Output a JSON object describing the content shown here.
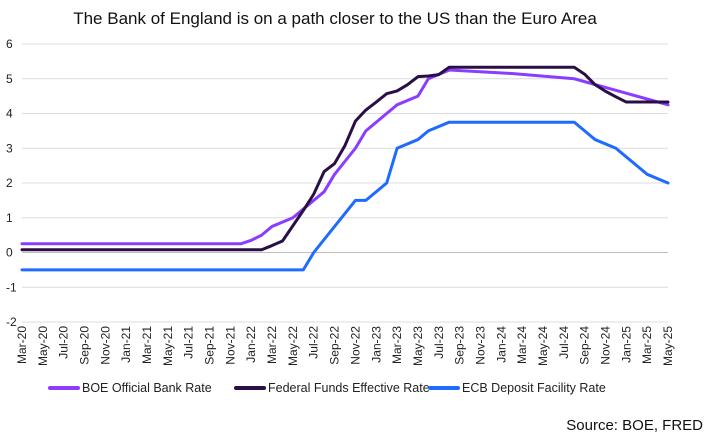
{
  "chart_data": {
    "type": "line",
    "title": "The Bank of England is on a path closer to the US than the Euro Area",
    "xlabel": "",
    "ylabel": "",
    "ylim": [
      -2,
      6
    ],
    "yticks": [
      "6",
      "5",
      "4",
      "3",
      "2",
      "1",
      "0",
      "-1",
      "-2"
    ],
    "x_tick_labels": [
      "Mar-20",
      "May-20",
      "Jul-20",
      "Sep-20",
      "Nov-20",
      "Jan-21",
      "Mar-21",
      "May-21",
      "Jul-21",
      "Sep-21",
      "Nov-21",
      "Jan-22",
      "Mar-22",
      "May-22",
      "Jul-22",
      "Sep-22",
      "Nov-22",
      "Jan-23",
      "Mar-23",
      "May-23",
      "Jul-23",
      "Sep-23",
      "Nov-23",
      "Jan-24",
      "Mar-24",
      "May-24",
      "Jul-24",
      "Sep-24",
      "Nov-24",
      "Jan-25",
      "Mar-25",
      "May-25"
    ],
    "grid": "horizontal",
    "legend_position": "bottom",
    "source": "Source: BOE, FRED",
    "series": [
      {
        "name": "BOE Official Bank Rate",
        "color": "#8b3dff",
        "points": [
          [
            "Mar-20",
            0.25
          ],
          [
            "Jul-20",
            0.25
          ],
          [
            "Nov-20",
            0.25
          ],
          [
            "Mar-21",
            0.25
          ],
          [
            "Jul-21",
            0.25
          ],
          [
            "Nov-21",
            0.25
          ],
          [
            "Dec-21",
            0.25
          ],
          [
            "Jan-22",
            0.35
          ],
          [
            "Feb-22",
            0.5
          ],
          [
            "Mar-22",
            0.75
          ],
          [
            "May-22",
            1.0
          ],
          [
            "Jun-22",
            1.25
          ],
          [
            "Aug-22",
            1.75
          ],
          [
            "Sep-22",
            2.25
          ],
          [
            "Nov-22",
            3.0
          ],
          [
            "Dec-22",
            3.5
          ],
          [
            "Feb-23",
            4.0
          ],
          [
            "Mar-23",
            4.25
          ],
          [
            "May-23",
            4.5
          ],
          [
            "Jun-23",
            5.0
          ],
          [
            "Aug-23",
            5.25
          ],
          [
            "Feb-24",
            5.15
          ],
          [
            "Jun-24",
            5.05
          ],
          [
            "Aug-24",
            5.0
          ],
          [
            "Nov-24",
            4.75
          ],
          [
            "Feb-25",
            4.5
          ],
          [
            "May-25",
            4.25
          ]
        ]
      },
      {
        "name": "Federal Funds Effective Rate",
        "color": "#2a0f45",
        "points": [
          [
            "Mar-20",
            0.08
          ],
          [
            "Jul-20",
            0.08
          ],
          [
            "Nov-20",
            0.08
          ],
          [
            "Mar-21",
            0.08
          ],
          [
            "Jul-21",
            0.08
          ],
          [
            "Nov-21",
            0.08
          ],
          [
            "Feb-22",
            0.08
          ],
          [
            "Mar-22",
            0.2
          ],
          [
            "Apr-22",
            0.33
          ],
          [
            "May-22",
            0.77
          ],
          [
            "Jun-22",
            1.21
          ],
          [
            "Jul-22",
            1.68
          ],
          [
            "Aug-22",
            2.33
          ],
          [
            "Sep-22",
            2.56
          ],
          [
            "Oct-22",
            3.08
          ],
          [
            "Nov-22",
            3.78
          ],
          [
            "Dec-22",
            4.1
          ],
          [
            "Jan-23",
            4.33
          ],
          [
            "Feb-23",
            4.57
          ],
          [
            "Mar-23",
            4.65
          ],
          [
            "Apr-23",
            4.83
          ],
          [
            "May-23",
            5.06
          ],
          [
            "Jun-23",
            5.08
          ],
          [
            "Jul-23",
            5.12
          ],
          [
            "Aug-23",
            5.33
          ],
          [
            "Nov-23",
            5.33
          ],
          [
            "Mar-24",
            5.33
          ],
          [
            "Aug-24",
            5.33
          ],
          [
            "Sep-24",
            5.13
          ],
          [
            "Oct-24",
            4.83
          ],
          [
            "Nov-24",
            4.64
          ],
          [
            "Dec-24",
            4.48
          ],
          [
            "Jan-25",
            4.33
          ],
          [
            "May-25",
            4.33
          ]
        ]
      },
      {
        "name": "ECB Deposit Facility Rate",
        "color": "#1f6bff",
        "points": [
          [
            "Mar-20",
            -0.5
          ],
          [
            "Jul-20",
            -0.5
          ],
          [
            "Nov-20",
            -0.5
          ],
          [
            "Mar-21",
            -0.5
          ],
          [
            "Jul-21",
            -0.5
          ],
          [
            "Nov-21",
            -0.5
          ],
          [
            "Mar-22",
            -0.5
          ],
          [
            "Jun-22",
            -0.5
          ],
          [
            "Jul-22",
            0.0
          ],
          [
            "Sep-22",
            0.75
          ],
          [
            "Nov-22",
            1.5
          ],
          [
            "Dec-22",
            1.5
          ],
          [
            "Feb-23",
            2.0
          ],
          [
            "Mar-23",
            3.0
          ],
          [
            "May-23",
            3.25
          ],
          [
            "Jun-23",
            3.5
          ],
          [
            "Aug-23",
            3.75
          ],
          [
            "Nov-23",
            3.75
          ],
          [
            "Mar-24",
            3.75
          ],
          [
            "Jun-24",
            3.75
          ],
          [
            "Aug-24",
            3.75
          ],
          [
            "Sep-24",
            3.5
          ],
          [
            "Oct-24",
            3.25
          ],
          [
            "Dec-24",
            3.0
          ],
          [
            "Jan-25",
            2.75
          ],
          [
            "Feb-25",
            2.5
          ],
          [
            "Mar-25",
            2.25
          ],
          [
            "May-25",
            2.0
          ]
        ]
      }
    ]
  }
}
